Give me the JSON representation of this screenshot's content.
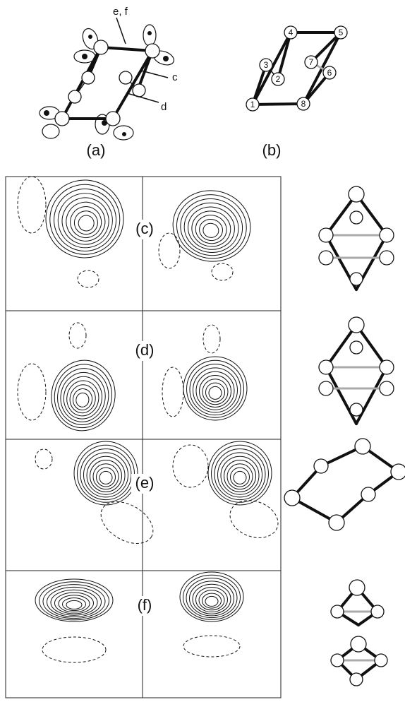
{
  "panel_a": {
    "label": "(a)",
    "annotations": [
      "e, f",
      "c",
      "d"
    ]
  },
  "panel_b": {
    "label": "(b)",
    "nodes": [
      "1",
      "2",
      "3",
      "4",
      "5",
      "6",
      "7",
      "8"
    ]
  },
  "panels": [
    {
      "label": "(c)"
    },
    {
      "label": "(d)"
    },
    {
      "label": "(e)"
    },
    {
      "label": "(f)"
    }
  ]
}
